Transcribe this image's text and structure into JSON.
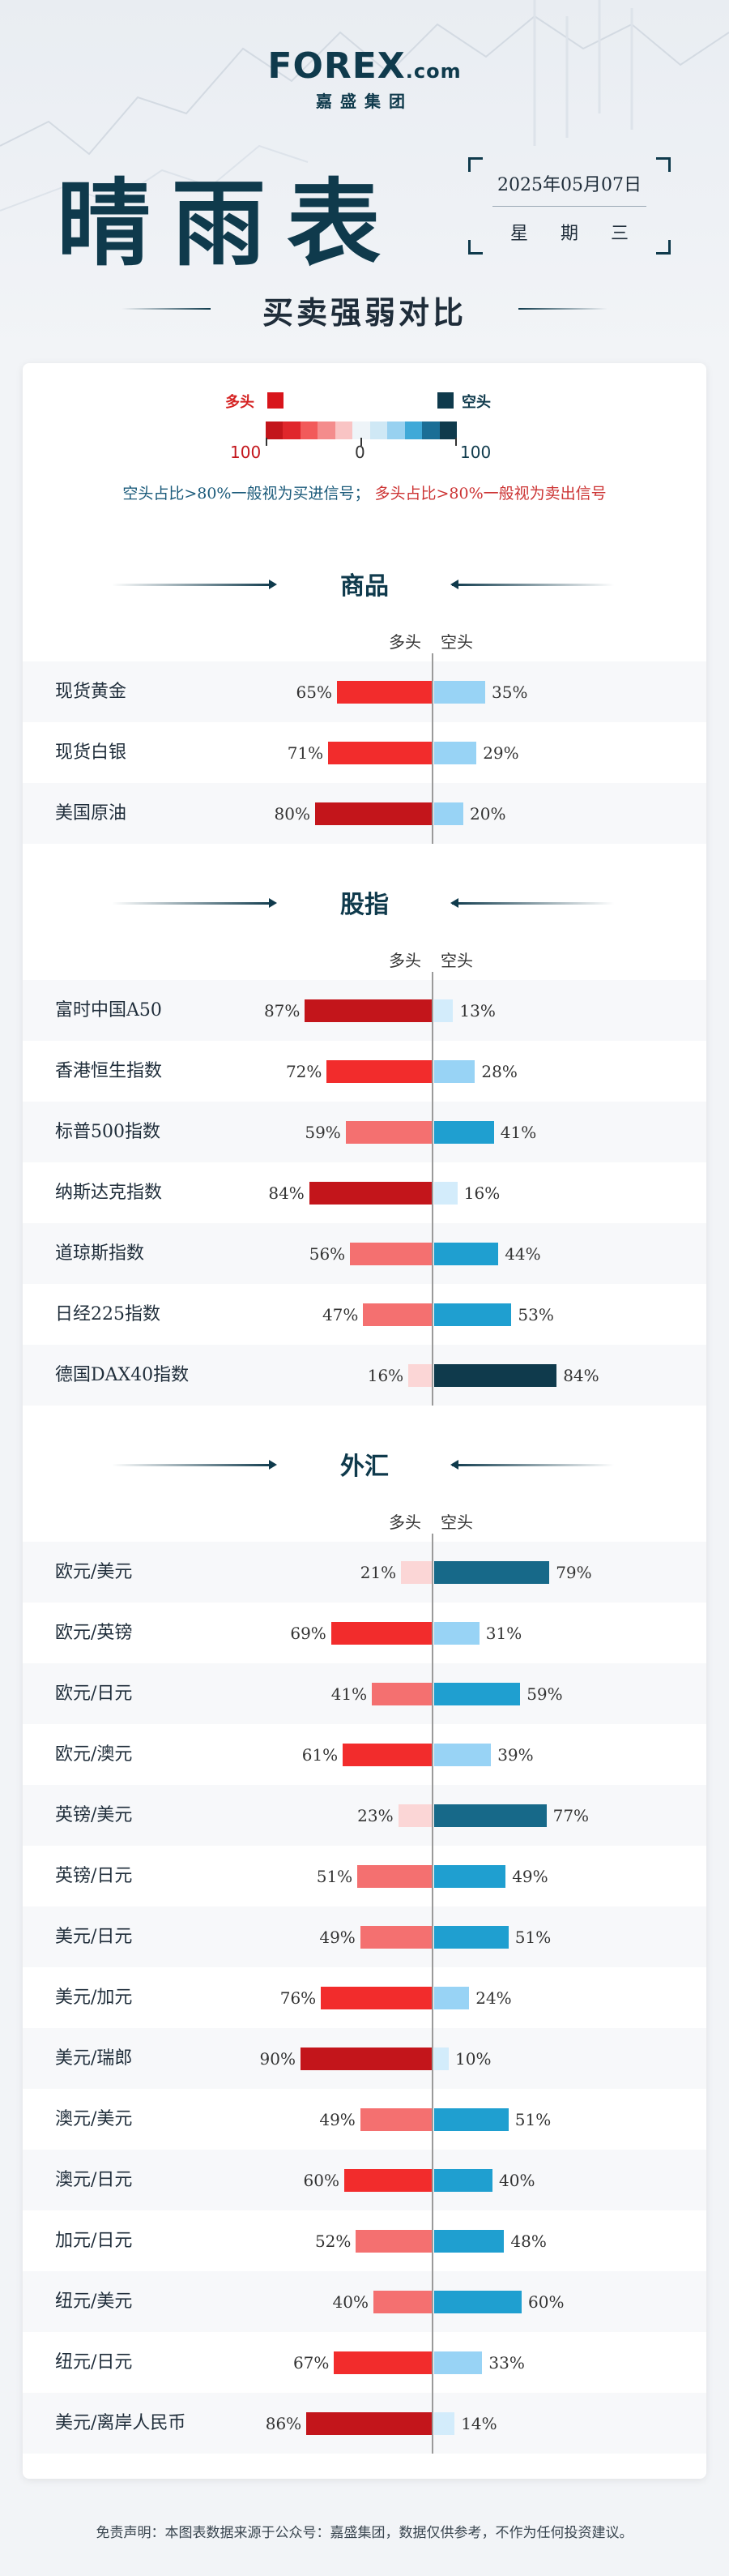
{
  "brand": {
    "logo_text": "FOREX",
    "logo_suffix": ".com",
    "logo_sub": "嘉盛集团"
  },
  "header": {
    "title": "晴雨表",
    "date": "2025年05月07日",
    "weekday": "星期三",
    "subtitle": "买卖强弱对比"
  },
  "legend": {
    "bull_label": "多头",
    "bear_label": "空头",
    "scale_left": "100",
    "scale_mid": "0",
    "scale_right": "100",
    "note_bear": "空头占比>80%一般视为买进信号；",
    "note_bull": "多头占比>80%一般视为卖出信号",
    "gradient_colors": [
      "#c3151b",
      "#e0262b",
      "#f25a5a",
      "#f48c8c",
      "#f9c4c4",
      "#eef4f8",
      "#cfe8f5",
      "#98d1f0",
      "#3fa9d8",
      "#1a6e96",
      "#0f3a4c"
    ]
  },
  "colors": {
    "bull_levels": {
      "strong": "#c3151b",
      "mid": "#f22c2c",
      "weak": "#f47070",
      "faint": "#fbd6d6"
    },
    "bear_levels": {
      "strong": "#0f3a4c",
      "deep": "#176989",
      "mid": "#1f9fd0",
      "weak": "#98d3f5",
      "faint": "#d3ecfb"
    }
  },
  "columns": {
    "bull": "多头",
    "bear": "空头"
  },
  "sections": [
    {
      "title": "商品",
      "rows": [
        {
          "name": "现货黄金",
          "bull": 65,
          "bear": 35,
          "bull_pct": "65%",
          "bear_pct": "35%"
        },
        {
          "name": "现货白银",
          "bull": 71,
          "bear": 29,
          "bull_pct": "71%",
          "bear_pct": "29%"
        },
        {
          "name": "美国原油",
          "bull": 80,
          "bear": 20,
          "bull_pct": "80%",
          "bear_pct": "20%"
        }
      ]
    },
    {
      "title": "股指",
      "rows": [
        {
          "name": "富时中国A50",
          "bull": 87,
          "bear": 13,
          "bull_pct": "87%",
          "bear_pct": "13%"
        },
        {
          "name": "香港恒生指数",
          "bull": 72,
          "bear": 28,
          "bull_pct": "72%",
          "bear_pct": "28%"
        },
        {
          "name": "标普500指数",
          "bull": 59,
          "bear": 41,
          "bull_pct": "59%",
          "bear_pct": "41%"
        },
        {
          "name": "纳斯达克指数",
          "bull": 84,
          "bear": 16,
          "bull_pct": "84%",
          "bear_pct": "16%"
        },
        {
          "name": "道琼斯指数",
          "bull": 56,
          "bear": 44,
          "bull_pct": "56%",
          "bear_pct": "44%"
        },
        {
          "name": "日经225指数",
          "bull": 47,
          "bear": 53,
          "bull_pct": "47%",
          "bear_pct": "53%"
        },
        {
          "name": "德国DAX40指数",
          "bull": 16,
          "bear": 84,
          "bull_pct": "16%",
          "bear_pct": "84%"
        }
      ]
    },
    {
      "title": "外汇",
      "rows": [
        {
          "name": "欧元/美元",
          "bull": 21,
          "bear": 79,
          "bull_pct": "21%",
          "bear_pct": "79%"
        },
        {
          "name": "欧元/英镑",
          "bull": 69,
          "bear": 31,
          "bull_pct": "69%",
          "bear_pct": "31%"
        },
        {
          "name": "欧元/日元",
          "bull": 41,
          "bear": 59,
          "bull_pct": "41%",
          "bear_pct": "59%"
        },
        {
          "name": "欧元/澳元",
          "bull": 61,
          "bear": 39,
          "bull_pct": "61%",
          "bear_pct": "39%"
        },
        {
          "name": "英镑/美元",
          "bull": 23,
          "bear": 77,
          "bull_pct": "23%",
          "bear_pct": "77%"
        },
        {
          "name": "英镑/日元",
          "bull": 51,
          "bear": 49,
          "bull_pct": "51%",
          "bear_pct": "49%"
        },
        {
          "name": "美元/日元",
          "bull": 49,
          "bear": 51,
          "bull_pct": "49%",
          "bear_pct": "51%"
        },
        {
          "name": "美元/加元",
          "bull": 76,
          "bear": 24,
          "bull_pct": "76%",
          "bear_pct": "24%"
        },
        {
          "name": "美元/瑞郎",
          "bull": 90,
          "bear": 10,
          "bull_pct": "90%",
          "bear_pct": "10%"
        },
        {
          "name": "澳元/美元",
          "bull": 49,
          "bear": 51,
          "bull_pct": "49%",
          "bear_pct": "51%"
        },
        {
          "name": "澳元/日元",
          "bull": 60,
          "bear": 40,
          "bull_pct": "60%",
          "bear_pct": "40%"
        },
        {
          "name": "加元/日元",
          "bull": 52,
          "bear": 48,
          "bull_pct": "52%",
          "bear_pct": "48%"
        },
        {
          "name": "纽元/美元",
          "bull": 40,
          "bear": 60,
          "bull_pct": "40%",
          "bear_pct": "60%"
        },
        {
          "name": "纽元/日元",
          "bull": 67,
          "bear": 33,
          "bull_pct": "67%",
          "bear_pct": "33%"
        },
        {
          "name": "美元/离岸人民币",
          "bull": 86,
          "bear": 14,
          "bull_pct": "86%",
          "bear_pct": "14%"
        }
      ]
    }
  ],
  "footer": {
    "disclaimer": "免责声明：本图表数据来源于公众号：嘉盛集团，数据仅供参考，不作为任何投资建议。"
  }
}
